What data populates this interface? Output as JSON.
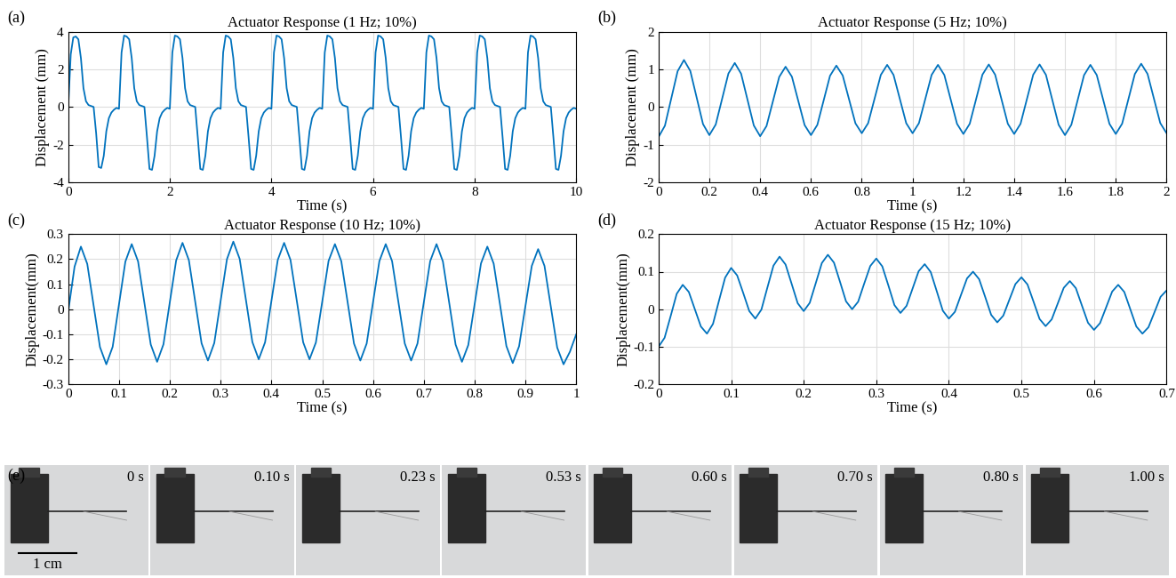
{
  "chart_data": [
    {
      "type": "line",
      "annotation": "(a)",
      "title": "Actuator Response (1 Hz; 10%)",
      "x_label": "Time (s)",
      "y_label": "Displacement (mm)",
      "color": "#0072bd",
      "grid": true,
      "xlim": [
        0,
        10
      ],
      "xticks": [
        0,
        2,
        4,
        6,
        8,
        10
      ],
      "ylim": [
        -4,
        4
      ],
      "yticks": [
        -4,
        -2,
        0,
        2,
        4
      ],
      "x": [
        0,
        0.05,
        0.1,
        0.15,
        0.2,
        0.25,
        0.3,
        0.35,
        0.4,
        0.45,
        0.5,
        0.55,
        0.6,
        0.65,
        0.7,
        0.75,
        0.8,
        0.85,
        0.9,
        0.95,
        1,
        1.05,
        1.1,
        1.15,
        1.2,
        1.25,
        1.3,
        1.35,
        1.4,
        1.45,
        1.5,
        1.55,
        1.6,
        1.65,
        1.7,
        1.75,
        1.8,
        1.85,
        1.9,
        1.95,
        2,
        2.05,
        2.1,
        2.15,
        2.2,
        2.25,
        2.3,
        2.35,
        2.4,
        2.45,
        2.5,
        2.55,
        2.6,
        2.65,
        2.7,
        2.75,
        2.8,
        2.85,
        2.9,
        2.95,
        3,
        3.05,
        3.1,
        3.15,
        3.2,
        3.25,
        3.3,
        3.35,
        3.4,
        3.45,
        3.5,
        3.55,
        3.6,
        3.65,
        3.7,
        3.75,
        3.8,
        3.85,
        3.9,
        3.95,
        4,
        4.05,
        4.1,
        4.15,
        4.2,
        4.25,
        4.3,
        4.35,
        4.4,
        4.45,
        4.5,
        4.55,
        4.6,
        4.65,
        4.7,
        4.75,
        4.8,
        4.85,
        4.9,
        4.95,
        5,
        5.05,
        5.1,
        5.15,
        5.2,
        5.25,
        5.3,
        5.35,
        5.4,
        5.45,
        5.5,
        5.55,
        5.6,
        5.65,
        5.7,
        5.75,
        5.8,
        5.85,
        5.9,
        5.95,
        6,
        6.05,
        6.1,
        6.15,
        6.2,
        6.25,
        6.3,
        6.35,
        6.4,
        6.45,
        6.5,
        6.55,
        6.6,
        6.65,
        6.7,
        6.75,
        6.8,
        6.85,
        6.9,
        6.95,
        7,
        7.05,
        7.1,
        7.15,
        7.2,
        7.25,
        7.3,
        7.35,
        7.4,
        7.45,
        7.5,
        7.55,
        7.6,
        7.65,
        7.7,
        7.75,
        7.8,
        7.85,
        7.9,
        7.95,
        8,
        8.05,
        8.1,
        8.15,
        8.2,
        8.25,
        8.3,
        8.35,
        8.4,
        8.45,
        8.5,
        8.55,
        8.6,
        8.65,
        8.7,
        8.75,
        8.8,
        8.85,
        8.9,
        8.95,
        9,
        9.05,
        9.1,
        9.15,
        9.2,
        9.25,
        9.3,
        9.35,
        9.4,
        9.45,
        9.5,
        9.55,
        9.6,
        9.65,
        9.7,
        9.75,
        9.8,
        9.85,
        9.9,
        9.95,
        10
      ],
      "values": [
        0.0,
        2.8,
        3.7,
        3.75,
        3.6,
        2.6,
        1.0,
        0.3,
        0.1,
        0.05,
        0.0,
        -1.4,
        -3.2,
        -3.25,
        -2.6,
        -1.3,
        -0.6,
        -0.3,
        -0.15,
        -0.05,
        -0.1,
        2.9,
        3.8,
        3.75,
        3.6,
        2.6,
        1.0,
        0.3,
        0.1,
        0.05,
        0.0,
        -1.6,
        -3.3,
        -3.35,
        -2.6,
        -1.3,
        -0.6,
        -0.3,
        -0.15,
        -0.05,
        -0.1,
        2.9,
        3.8,
        3.75,
        3.6,
        2.6,
        1.0,
        0.3,
        0.1,
        0.05,
        0.0,
        -1.6,
        -3.3,
        -3.35,
        -2.6,
        -1.3,
        -0.6,
        -0.3,
        -0.15,
        -0.05,
        -0.1,
        2.9,
        3.8,
        3.75,
        3.6,
        2.6,
        1.0,
        0.3,
        0.1,
        0.05,
        0.0,
        -1.6,
        -3.3,
        -3.35,
        -2.6,
        -1.3,
        -0.6,
        -0.3,
        -0.15,
        -0.05,
        -0.1,
        2.9,
        3.8,
        3.75,
        3.6,
        2.6,
        1.0,
        0.3,
        0.1,
        0.05,
        0.0,
        -1.6,
        -3.3,
        -3.35,
        -2.6,
        -1.3,
        -0.6,
        -0.3,
        -0.15,
        -0.05,
        -0.1,
        2.9,
        3.8,
        3.75,
        3.6,
        2.6,
        1.0,
        0.3,
        0.1,
        0.05,
        0.0,
        -1.6,
        -3.3,
        -3.35,
        -2.6,
        -1.3,
        -0.6,
        -0.3,
        -0.15,
        -0.05,
        -0.1,
        2.9,
        3.8,
        3.75,
        3.6,
        2.6,
        1.0,
        0.3,
        0.1,
        0.05,
        0.0,
        -1.6,
        -3.3,
        -3.35,
        -2.6,
        -1.3,
        -0.6,
        -0.3,
        -0.15,
        -0.05,
        -0.1,
        2.9,
        3.8,
        3.75,
        3.6,
        2.6,
        1.0,
        0.3,
        0.1,
        0.05,
        0.0,
        -1.6,
        -3.3,
        -3.35,
        -2.6,
        -1.3,
        -0.6,
        -0.3,
        -0.15,
        -0.05,
        -0.1,
        2.9,
        3.8,
        3.75,
        3.6,
        2.6,
        1.0,
        0.3,
        0.1,
        0.05,
        0.0,
        -1.6,
        -3.3,
        -3.35,
        -2.6,
        -1.3,
        -0.6,
        -0.3,
        -0.15,
        -0.05,
        -0.1,
        2.9,
        3.8,
        3.75,
        3.6,
        2.6,
        1.0,
        0.3,
        0.1,
        0.05,
        0.0,
        -1.6,
        -3.3,
        -3.35,
        -2.6,
        -1.3,
        -0.6,
        -0.3,
        -0.15,
        -0.05,
        -0.1
      ]
    },
    {
      "type": "line",
      "annotation": "(b)",
      "title": "Actuator Response (5 Hz; 10%)",
      "x_label": "Time (s)",
      "y_label": "Displacement (mm)",
      "color": "#0072bd",
      "grid": true,
      "xlim": [
        0,
        2
      ],
      "xticks": [
        0,
        0.2,
        0.4,
        0.6,
        0.8,
        1,
        1.2,
        1.4,
        1.6,
        1.8,
        2
      ],
      "ylim": [
        -2,
        2
      ],
      "yticks": [
        -2,
        -1,
        0,
        1,
        2
      ],
      "x": [
        0,
        0.025,
        0.05,
        0.075,
        0.1,
        0.125,
        0.15,
        0.175,
        0.2,
        0.225,
        0.25,
        0.275,
        0.3,
        0.325,
        0.35,
        0.375,
        0.4,
        0.425,
        0.45,
        0.475,
        0.5,
        0.525,
        0.55,
        0.575,
        0.6,
        0.625,
        0.65,
        0.675,
        0.7,
        0.725,
        0.75,
        0.775,
        0.8,
        0.825,
        0.85,
        0.875,
        0.9,
        0.925,
        0.95,
        0.975,
        1,
        1.025,
        1.05,
        1.075,
        1.1,
        1.125,
        1.15,
        1.175,
        1.2,
        1.225,
        1.25,
        1.275,
        1.3,
        1.325,
        1.35,
        1.375,
        1.4,
        1.425,
        1.45,
        1.475,
        1.5,
        1.525,
        1.55,
        1.575,
        1.6,
        1.625,
        1.65,
        1.675,
        1.7,
        1.725,
        1.75,
        1.775,
        1.8,
        1.825,
        1.85,
        1.875,
        1.9,
        1.925,
        1.95,
        1.975,
        2
      ],
      "values": [
        -0.8,
        -0.5,
        0.225,
        0.95,
        1.25,
        0.957,
        0.25,
        -0.457,
        -0.75,
        -0.469,
        0.21,
        0.889,
        1.17,
        0.884,
        0.195,
        -0.494,
        -0.78,
        -0.509,
        0.145,
        0.799,
        1.07,
        0.803,
        0.16,
        -0.483,
        -0.75,
        -0.479,
        0.175,
        0.829,
        1.1,
        0.836,
        0.2,
        -0.436,
        -0.7,
        -0.433,
        0.21,
        0.853,
        1.12,
        0.853,
        0.21,
        -0.433,
        -0.7,
        -0.433,
        0.21,
        0.853,
        1.12,
        0.85,
        0.2,
        -0.45,
        -0.72,
        -0.449,
        0.205,
        0.859,
        1.13,
        0.859,
        0.205,
        -0.449,
        -0.72,
        -0.449,
        0.205,
        0.859,
        1.13,
        0.855,
        0.19,
        -0.475,
        -0.75,
        -0.476,
        0.185,
        0.846,
        1.12,
        0.85,
        0.2,
        -0.45,
        -0.72,
        -0.446,
        0.215,
        0.876,
        1.15,
        0.879,
        0.225,
        -0.429,
        -0.7
      ]
    },
    {
      "type": "line",
      "annotation": "(c)",
      "title": "Actuator Response (10 Hz; 10%)",
      "x_label": "Time (s)",
      "y_label": "Displacement(mm)",
      "color": "#0072bd",
      "grid": true,
      "xlim": [
        0,
        1
      ],
      "xticks": [
        0,
        0.1,
        0.2,
        0.3,
        0.4,
        0.5,
        0.6,
        0.7,
        0.8,
        0.9,
        1
      ],
      "ylim": [
        -0.3,
        0.3
      ],
      "yticks": [
        -0.3,
        -0.2,
        -0.1,
        0,
        0.1,
        0.2,
        0.3
      ],
      "x": [
        0,
        0.0125,
        0.025,
        0.0375,
        0.05,
        0.0625,
        0.075,
        0.0875,
        0.1,
        0.1125,
        0.125,
        0.1375,
        0.15,
        0.1625,
        0.175,
        0.1875,
        0.2,
        0.2125,
        0.225,
        0.2375,
        0.25,
        0.2625,
        0.275,
        0.2875,
        0.3,
        0.3125,
        0.325,
        0.3375,
        0.35,
        0.3625,
        0.375,
        0.3875,
        0.4,
        0.4125,
        0.425,
        0.4375,
        0.45,
        0.4625,
        0.475,
        0.4875,
        0.5,
        0.5125,
        0.525,
        0.5375,
        0.55,
        0.5625,
        0.575,
        0.5875,
        0.6,
        0.6125,
        0.625,
        0.6375,
        0.65,
        0.6625,
        0.675,
        0.6875,
        0.7,
        0.7125,
        0.725,
        0.7375,
        0.75,
        0.7625,
        0.775,
        0.7875,
        0.8,
        0.8125,
        0.825,
        0.8375,
        0.85,
        0.8625,
        0.875,
        0.8875,
        0.9,
        0.9125,
        0.925,
        0.9375,
        0.95,
        0.9625,
        0.975,
        0.9875,
        1
      ],
      "values": [
        -0.01,
        0.17,
        0.25,
        0.181,
        0.015,
        -0.151,
        -0.22,
        -0.15,
        0.02,
        0.19,
        0.26,
        0.191,
        0.025,
        -0.141,
        -0.21,
        -0.14,
        0.028,
        0.195,
        0.265,
        0.196,
        0.03,
        -0.136,
        -0.205,
        -0.135,
        0.033,
        0.2,
        0.27,
        0.201,
        0.035,
        -0.131,
        -0.2,
        -0.132,
        0.033,
        0.197,
        0.265,
        0.197,
        0.033,
        -0.132,
        -0.2,
        -0.133,
        0.03,
        0.193,
        0.26,
        0.192,
        0.028,
        -0.137,
        -0.205,
        -0.137,
        0.028,
        0.192,
        0.26,
        0.192,
        0.028,
        -0.137,
        -0.205,
        -0.137,
        0.028,
        0.192,
        0.26,
        0.191,
        0.025,
        -0.141,
        -0.21,
        -0.143,
        0.02,
        0.183,
        0.25,
        0.182,
        0.018,
        -0.147,
        -0.215,
        -0.148,
        0.013,
        0.173,
        0.24,
        0.173,
        0.01,
        -0.153,
        -0.22,
        -0.17,
        -0.1
      ]
    },
    {
      "type": "line",
      "annotation": "(d)",
      "title": "Actuator Response (15 Hz; 10%)",
      "x_label": "Time (s)",
      "y_label": "Displacement(mm)",
      "color": "#0072bd",
      "grid": true,
      "xlim": [
        0,
        0.7
      ],
      "xticks": [
        0,
        0.1,
        0.2,
        0.3,
        0.4,
        0.5,
        0.6,
        0.7
      ],
      "ylim": [
        -0.2,
        0.2
      ],
      "yticks": [
        -0.2,
        -0.1,
        0,
        0.1,
        0.2
      ],
      "x": [
        0,
        0.0083,
        0.0167,
        0.025,
        0.0333,
        0.0417,
        0.05,
        0.0583,
        0.0667,
        0.075,
        0.0833,
        0.0917,
        0.1,
        0.1083,
        0.1167,
        0.125,
        0.1333,
        0.1417,
        0.15,
        0.1583,
        0.1667,
        0.175,
        0.1833,
        0.1917,
        0.2,
        0.2083,
        0.2167,
        0.225,
        0.2333,
        0.2417,
        0.25,
        0.2583,
        0.2667,
        0.275,
        0.2833,
        0.2917,
        0.3,
        0.3083,
        0.3167,
        0.325,
        0.3333,
        0.3417,
        0.35,
        0.3583,
        0.3667,
        0.375,
        0.3833,
        0.3917,
        0.4,
        0.4083,
        0.4167,
        0.425,
        0.4333,
        0.4417,
        0.45,
        0.4583,
        0.4667,
        0.475,
        0.4833,
        0.4917,
        0.5,
        0.5083,
        0.5167,
        0.525,
        0.5333,
        0.5417,
        0.55,
        0.5583,
        0.5667,
        0.575,
        0.5833,
        0.5917,
        0.6,
        0.6083,
        0.6167,
        0.625,
        0.6333,
        0.6417,
        0.65,
        0.6583,
        0.6667,
        0.675,
        0.6833,
        0.6917,
        0.7
      ],
      "values": [
        -0.1,
        -0.076,
        -0.018,
        0.041,
        0.065,
        0.046,
        0,
        -0.046,
        -0.065,
        -0.039,
        0.023,
        0.084,
        0.11,
        0.09,
        0.043,
        -0.005,
        -0.025,
        -0.001,
        0.058,
        0.116,
        0.14,
        0.119,
        0.068,
        0.016,
        -0.005,
        0.017,
        0.07,
        0.123,
        0.145,
        0.124,
        0.073,
        0.021,
        0,
        0.02,
        0.068,
        0.115,
        0.135,
        0.114,
        0.063,
        0.011,
        -0.01,
        0.009,
        0.055,
        0.101,
        0.12,
        0.099,
        0.048,
        -0.004,
        -0.025,
        -0.007,
        0.038,
        0.082,
        0.1,
        0.08,
        0.033,
        -0.015,
        -0.035,
        -0.017,
        0.025,
        0.067,
        0.085,
        0.066,
        0.02,
        -0.026,
        -0.045,
        -0.027,
        0.015,
        0.057,
        0.075,
        0.056,
        0.01,
        -0.036,
        -0.055,
        -0.037,
        0.005,
        0.047,
        0.065,
        0.046,
        0,
        -0.046,
        -0.065,
        -0.048,
        -0.008,
        0.033,
        0.05
      ]
    }
  ],
  "image_strip": {
    "annotation": "(e)",
    "frames": [
      "0 s",
      "0.10 s",
      "0.23 s",
      "0.53 s",
      "0.60 s",
      "0.70 s",
      "0.80 s",
      "1.00 s"
    ],
    "scale_bar": "1 cm"
  }
}
